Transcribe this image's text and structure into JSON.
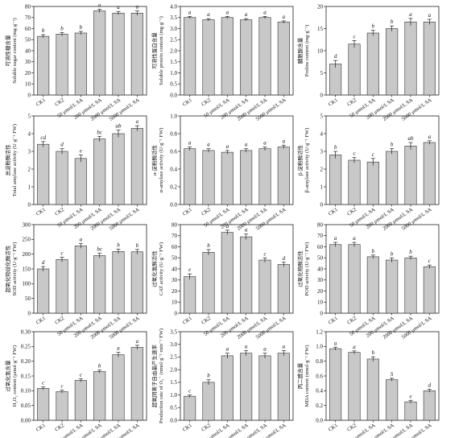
{
  "chart_data": [
    {
      "type": "bar",
      "categories": [
        "CK1",
        "CK2",
        "50 μmol/L SA",
        "200 μmol/L SA",
        "2000 μmol/L SA",
        "5000 μmol/L SA"
      ],
      "values": [
        53,
        55,
        56,
        76,
        74,
        74
      ],
      "errors": [
        1.5,
        1.5,
        1.5,
        1.5,
        1.5,
        2
      ],
      "letters": [
        "b",
        "b",
        "b",
        "a",
        "a",
        "a"
      ],
      "ylabel_cn": "可溶性糖含量",
      "ylabel": "Soluble sugar content (mg·g⁻¹)",
      "ylim": [
        0,
        80
      ],
      "yticks": [
        0,
        10,
        20,
        30,
        40,
        50,
        60,
        70,
        80
      ]
    },
    {
      "type": "bar",
      "categories": [
        "CK1",
        "CK2",
        "50 μmol/L SA",
        "200 μmol/L SA",
        "2000 μmol/L SA",
        "5000 μmol/L SA"
      ],
      "values": [
        3.5,
        3.4,
        3.5,
        3.4,
        3.5,
        3.3
      ],
      "errors": [
        0.05,
        0.05,
        0.05,
        0.05,
        0.05,
        0.05
      ],
      "letters": [
        "a",
        "a",
        "a",
        "a",
        "a",
        "a"
      ],
      "ylabel_cn": "可溶性蛋白含量",
      "ylabel": "Soluble protein content (mg·g⁻¹)",
      "ylim": [
        0,
        4
      ],
      "yticks": [
        0.0,
        0.5,
        1.0,
        1.5,
        2.0,
        2.5,
        3.0,
        3.5,
        4.0
      ]
    },
    {
      "type": "bar",
      "categories": [
        "CK1",
        "CK2",
        "50 μmol/L SA",
        "200 μmol/L SA",
        "2000 μmol/L SA",
        "5000 μmol/L SA"
      ],
      "values": [
        7,
        11.5,
        14,
        15,
        16.5,
        16.5
      ],
      "errors": [
        0.8,
        0.8,
        0.6,
        0.6,
        0.8,
        0.6
      ],
      "letters": [
        "d",
        "c",
        "b",
        "b",
        "a",
        "a"
      ],
      "ylabel_cn": "脯氨酸含量",
      "ylabel": "Proline content (mg·g⁻¹)",
      "ylim": [
        0,
        20
      ],
      "yticks": [
        0,
        5,
        10,
        15,
        20
      ]
    },
    {
      "type": "bar",
      "categories": [
        "CK1",
        "CK2",
        "50 μmol/L SA",
        "200 μmol/L SA",
        "2000 μmol/L SA",
        "5000 μmol/L SA"
      ],
      "values": [
        3.4,
        3.0,
        2.6,
        3.7,
        4.0,
        4.3
      ],
      "errors": [
        0.15,
        0.15,
        0.2,
        0.15,
        0.2,
        0.15
      ],
      "letters": [
        "cd",
        "d",
        "e",
        "bc",
        "ab",
        "a"
      ],
      "ylabel_cn": "总淀粉酶活性",
      "ylabel": "Total amylase activity (U·g⁻¹ FW)",
      "ylim": [
        0,
        5
      ],
      "yticks": [
        0,
        1,
        2,
        3,
        4,
        5
      ]
    },
    {
      "type": "bar",
      "categories": [
        "CK1",
        "CK2",
        "50 μmol/L SA",
        "200 μmol/L SA",
        "2000 μmol/L SA",
        "5000 μmol/L SA"
      ],
      "values": [
        0.63,
        0.61,
        0.59,
        0.61,
        0.63,
        0.65
      ],
      "errors": [
        0.02,
        0.02,
        0.02,
        0.02,
        0.02,
        0.02
      ],
      "letters": [
        "a",
        "a",
        "a",
        "a",
        "a",
        "a"
      ],
      "ylabel_cn": "α-淀粉酶活性",
      "ylabel": "α-amylase activity (U·g⁻¹ FW)",
      "ylim": [
        0,
        1.0
      ],
      "yticks": [
        0.0,
        0.2,
        0.4,
        0.6,
        0.8,
        1.0
      ]
    },
    {
      "type": "bar",
      "categories": [
        "CK1",
        "CK2",
        "50 μmol/L SA",
        "200 μmol/L SA",
        "2000 μmol/L SA",
        "5000 μmol/L SA"
      ],
      "values": [
        2.8,
        2.5,
        2.4,
        3.0,
        3.3,
        3.5
      ],
      "errors": [
        0.2,
        0.15,
        0.2,
        0.15,
        0.2,
        0.1
      ],
      "letters": [
        "b",
        "c",
        "c",
        "b",
        "ab",
        "a"
      ],
      "ylabel_cn": "β-淀粉酶活性",
      "ylabel": "β-amylase activity (U·g⁻¹ FW)",
      "ylim": [
        0,
        5
      ],
      "yticks": [
        0,
        1,
        2,
        3,
        4,
        5
      ]
    },
    {
      "type": "bar",
      "categories": [
        "CK1",
        "CK2",
        "50 μmol/L SA",
        "200 μmol/L SA",
        "2000 μmol/L SA",
        "5000 μmol/L SA"
      ],
      "values": [
        150,
        182,
        228,
        195,
        209,
        208
      ],
      "errors": [
        8,
        8,
        8,
        8,
        8,
        8
      ],
      "letters": [
        "d",
        "c",
        "a",
        "bc",
        "b",
        "b"
      ],
      "ylabel_cn": "超氧化物歧化酶活性",
      "ylabel": "SOD activity (U·g⁻¹ FW)",
      "ylim": [
        0,
        300
      ],
      "yticks": [
        0,
        50,
        100,
        150,
        200,
        250,
        300
      ]
    },
    {
      "type": "bar",
      "categories": [
        "CK1",
        "CK2",
        "50 μmol/L SA",
        "200 μmol/L SA",
        "2000 μmol/L SA",
        "5000 μmol/L SA"
      ],
      "values": [
        33,
        55,
        73,
        69,
        48,
        44
      ],
      "errors": [
        2.5,
        2.5,
        2,
        2.5,
        2,
        2
      ],
      "letters": [
        "e",
        "b",
        "a",
        "a",
        "c",
        "d"
      ],
      "ylabel_cn": "过氧化氢酶活性",
      "ylabel": "CAT activity (U·g⁻¹ FW)",
      "ylim": [
        0,
        80
      ],
      "yticks": [
        0,
        10,
        20,
        30,
        40,
        50,
        60,
        70,
        80
      ]
    },
    {
      "type": "bar",
      "categories": [
        "CK1",
        "CK2",
        "50 μmol/L SA",
        "200 μmol/L SA",
        "2000 μmol/L SA",
        "5000 μmol/L SA"
      ],
      "values": [
        62,
        62,
        51,
        48,
        50,
        42
      ],
      "errors": [
        2,
        2,
        1.5,
        2,
        1.5,
        1.5
      ],
      "letters": [
        "a",
        "a",
        "b",
        "b",
        "b",
        "c"
      ],
      "ylabel_cn": "过氧化物酶活性",
      "ylabel": "POD activity (U·g⁻¹ FW)",
      "ylim": [
        0,
        80
      ],
      "yticks": [
        0,
        10,
        20,
        30,
        40,
        50,
        60,
        70,
        80
      ]
    },
    {
      "type": "bar",
      "categories": [
        "CK1",
        "CK2",
        "50 μmol/L SA",
        "200 μmol/L SA",
        "2000 μmol/L SA",
        "5000 μmol/L SA"
      ],
      "values": [
        0.108,
        0.097,
        0.135,
        0.165,
        0.222,
        0.247
      ],
      "errors": [
        0.005,
        0.005,
        0.005,
        0.005,
        0.008,
        0.007
      ],
      "letters": [
        "c",
        "c",
        "c",
        "b",
        "a",
        "a"
      ],
      "ylabel_cn": "过氧化氢含量",
      "ylabel": "H₂O₂ content (μmol·g⁻¹ FW)",
      "ylim": [
        0,
        0.3
      ],
      "yticks": [
        0.0,
        0.05,
        0.1,
        0.15,
        0.2,
        0.25,
        0.3
      ]
    },
    {
      "type": "bar",
      "categories": [
        "CK1",
        "CK2",
        "50 μmol/L SA",
        "200 μmol/L SA",
        "2000 μmol/L SA",
        "5000 μmol/L SA"
      ],
      "values": [
        0.95,
        1.5,
        2.55,
        2.65,
        2.55,
        2.65
      ],
      "errors": [
        0.05,
        0.1,
        0.1,
        0.1,
        0.1,
        0.1
      ],
      "letters": [
        "c",
        "b",
        "a",
        "a",
        "a",
        "a"
      ],
      "ylabel_cn": "超氧阴离子自由基产生速率",
      "ylabel": "Production rate of O₂⁻ (nmol·g⁻¹·min⁻¹ FW)",
      "ylim": [
        0,
        3.5
      ],
      "yticks": [
        0.0,
        0.5,
        1.0,
        1.5,
        2.0,
        2.5,
        3.0,
        3.5
      ]
    },
    {
      "type": "bar",
      "categories": [
        "CK1",
        "CK2",
        "50 μmol/L SA",
        "200 μmol/L SA",
        "2000 μmol/L SA",
        "5000 μmol/L SA"
      ],
      "values": [
        0.97,
        0.92,
        0.83,
        0.55,
        0.25,
        0.4
      ],
      "errors": [
        0.02,
        0.02,
        0.03,
        0.02,
        0.02,
        0.02
      ],
      "letters": [
        "a",
        "a",
        "b",
        "S",
        "e",
        "d"
      ],
      "ylabel_cn": "丙二醛含量",
      "ylabel": "MDA content (nmol·g⁻¹ FW)",
      "ylim": [
        0,
        1.2
      ],
      "yticks": [
        0.0,
        0.2,
        0.4,
        0.6,
        0.8,
        1.0,
        1.2
      ]
    }
  ],
  "colors": {
    "bar_fill": "#c8c8c8",
    "bar_stroke": "#333333",
    "axis": "#222222"
  }
}
